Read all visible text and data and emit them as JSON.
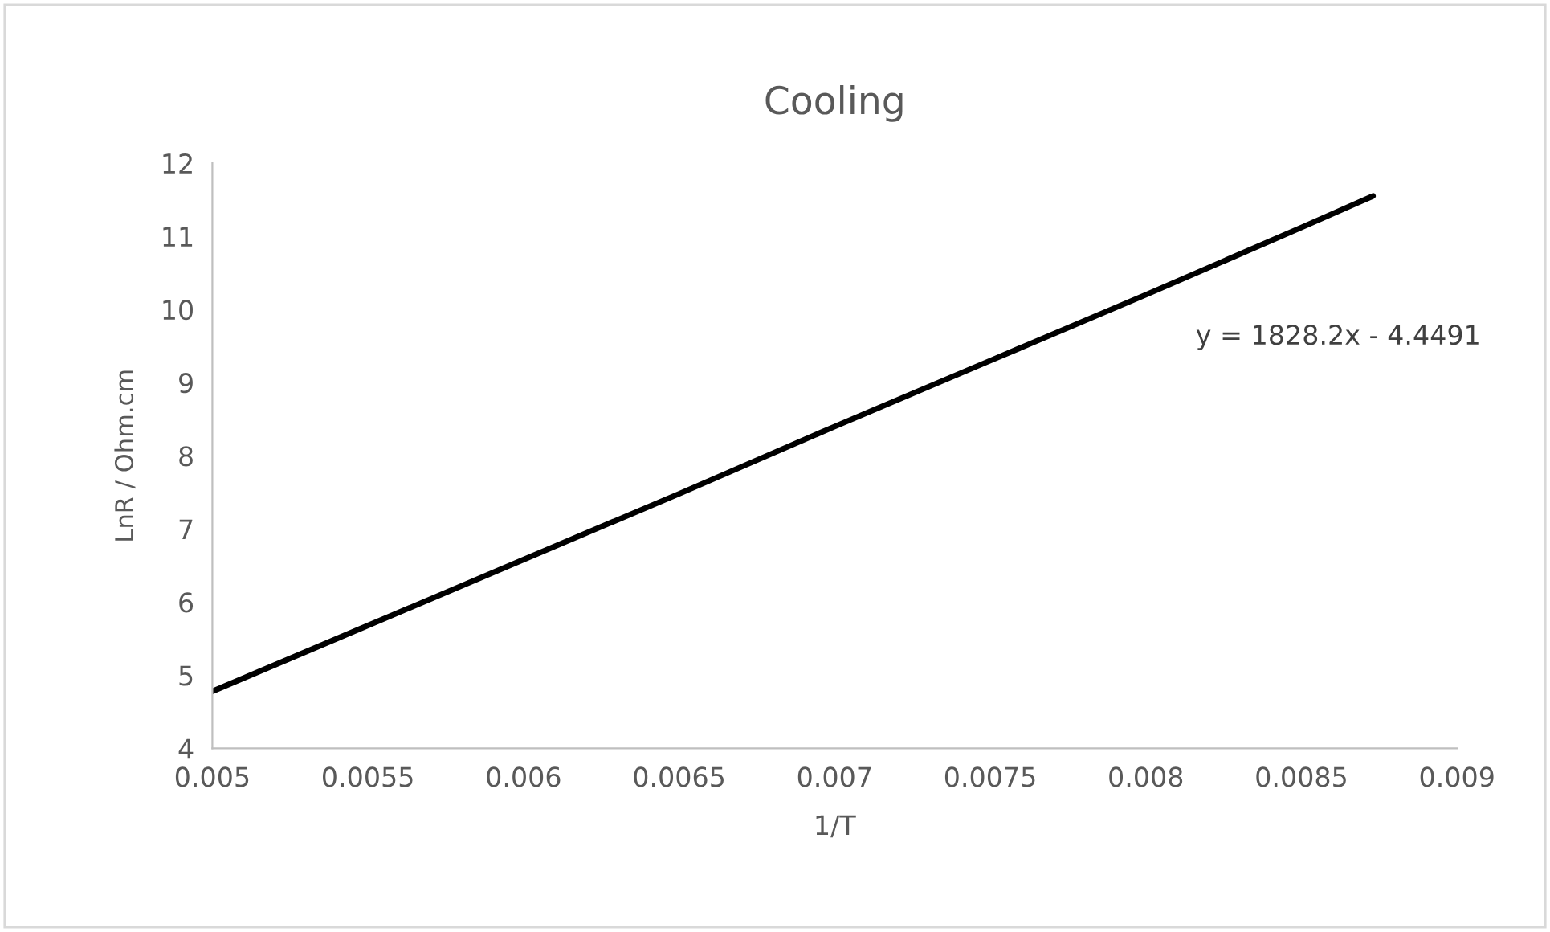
{
  "chart_data": {
    "type": "line",
    "title": "Cooling",
    "xlabel": "1/T",
    "ylabel": "LnR / Ohm.cm",
    "series": [
      {
        "color": "#000000",
        "x": [
          0.005,
          0.0055,
          0.006,
          0.0065,
          0.007,
          0.0075,
          0.008,
          0.0085,
          0.00873
        ],
        "values": [
          4.78,
          5.68,
          6.58,
          7.48,
          8.4,
          9.3,
          10.2,
          11.12,
          11.55
        ]
      }
    ],
    "xlim": [
      0.005,
      0.009
    ],
    "xticks": [
      0.005,
      0.0055,
      0.006,
      0.0065,
      0.007,
      0.0075,
      0.008,
      0.0085,
      0.009
    ],
    "ylim": [
      4,
      12
    ],
    "yticks": [
      4,
      5,
      6,
      7,
      8,
      9,
      10,
      11,
      12
    ],
    "annotations": [
      "y = 1828.2x - 4.4491"
    ],
    "grid": false,
    "legend": false,
    "marker": "none",
    "line_style": "solid"
  }
}
